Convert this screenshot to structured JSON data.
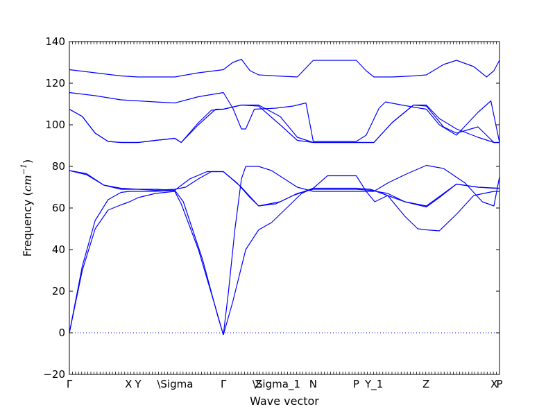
{
  "chart_data": {
    "type": "line",
    "title": "",
    "xlabel": "Wave vector",
    "ylabel": "Frequency",
    "ylabel_unit": "cm",
    "ylabel_unit_exp": "−1",
    "ylim": [
      -20,
      140
    ],
    "yticks": [
      -20,
      0,
      20,
      40,
      60,
      80,
      100,
      120,
      140
    ],
    "xlim": [
      0,
      1
    ],
    "grid": false,
    "legend": "none",
    "line_color": "#0000ff",
    "zero_line_color": "#0000ff",
    "high_symmetry_points": [
      {
        "label": "Γ",
        "pos": 0.0
      },
      {
        "label": "X",
        "pos": 0.1375
      },
      {
        "label": "Y",
        "pos": 0.1596
      },
      {
        "label": "\\Sigma",
        "pos": 0.2458
      },
      {
        "label": "Γ",
        "pos": 0.3583
      },
      {
        "label": "Z",
        "pos": 0.4396
      },
      {
        "label": "\\Sigma_1",
        "pos": 0.4813
      },
      {
        "label": "N",
        "pos": 0.5667
      },
      {
        "label": "P",
        "pos": 0.6667
      },
      {
        "label": "Y_1",
        "pos": 0.7083
      },
      {
        "label": "Z",
        "pos": 0.8292
      },
      {
        "label": "X",
        "pos": 0.9875
      },
      {
        "label": "P",
        "pos": 1.0
      }
    ],
    "series": [
      {
        "values": [
          [
            0,
            0
          ],
          [
            0.03,
            30
          ],
          [
            0.06,
            50
          ],
          [
            0.09,
            59
          ],
          [
            0.12,
            61.5
          ],
          [
            0.14,
            63
          ],
          [
            0.16,
            65
          ],
          [
            0.2,
            67
          ],
          [
            0.245,
            68
          ],
          [
            0.26,
            62
          ],
          [
            0.3,
            40
          ],
          [
            0.34,
            12
          ],
          [
            0.358,
            -1
          ]
        ]
      },
      {
        "values": [
          [
            0,
            0
          ],
          [
            0.03,
            32
          ],
          [
            0.06,
            54
          ],
          [
            0.09,
            64
          ],
          [
            0.12,
            67.5
          ],
          [
            0.14,
            68
          ],
          [
            0.2,
            68
          ],
          [
            0.245,
            68.5
          ],
          [
            0.265,
            63
          ],
          [
            0.31,
            35
          ],
          [
            0.345,
            8
          ],
          [
            0.358,
            -1
          ]
        ]
      },
      {
        "values": [
          [
            0,
            78
          ],
          [
            0.04,
            76
          ],
          [
            0.08,
            71
          ],
          [
            0.12,
            69.5
          ],
          [
            0.16,
            69
          ],
          [
            0.2,
            69
          ],
          [
            0.245,
            68.5
          ],
          [
            0.28,
            74
          ],
          [
            0.32,
            77.5
          ],
          [
            0.358,
            77.5
          ],
          [
            0.4,
            70
          ],
          [
            0.44,
            61
          ],
          [
            0.48,
            62
          ],
          [
            0.52,
            66
          ],
          [
            0.567,
            69.5
          ],
          [
            0.6,
            69.5
          ],
          [
            0.667,
            69.5
          ],
          [
            0.7,
            69
          ],
          [
            0.74,
            66
          ],
          [
            0.78,
            63
          ],
          [
            0.83,
            61
          ],
          [
            0.87,
            67
          ],
          [
            0.9,
            71.5
          ],
          [
            0.95,
            70
          ],
          [
            0.987,
            69.5
          ],
          [
            1.0,
            69.5
          ]
        ]
      },
      {
        "values": [
          [
            0,
            78
          ],
          [
            0.04,
            76.5
          ],
          [
            0.08,
            71
          ],
          [
            0.12,
            69
          ],
          [
            0.16,
            69
          ],
          [
            0.2,
            68.5
          ],
          [
            0.245,
            69
          ],
          [
            0.27,
            70
          ],
          [
            0.3,
            74
          ],
          [
            0.33,
            77.5
          ],
          [
            0.358,
            77.5
          ],
          [
            0.39,
            72
          ],
          [
            0.42,
            65
          ],
          [
            0.44,
            61
          ],
          [
            0.49,
            63
          ],
          [
            0.53,
            67
          ],
          [
            0.567,
            69
          ],
          [
            0.6,
            69
          ],
          [
            0.667,
            69
          ],
          [
            0.7,
            68.5
          ],
          [
            0.74,
            67
          ],
          [
            0.78,
            63
          ],
          [
            0.83,
            60.5
          ],
          [
            0.86,
            65
          ],
          [
            0.9,
            71.5
          ],
          [
            0.95,
            70
          ],
          [
            1.0,
            69.5
          ]
        ]
      },
      {
        "values": [
          [
            0.358,
            -1
          ],
          [
            0.37,
            20
          ],
          [
            0.385,
            50
          ],
          [
            0.4,
            74
          ],
          [
            0.41,
            80
          ],
          [
            0.44,
            80
          ],
          [
            0.47,
            78
          ],
          [
            0.5,
            74
          ],
          [
            0.53,
            70
          ],
          [
            0.567,
            68
          ],
          [
            0.667,
            68
          ],
          [
            0.708,
            68
          ],
          [
            0.74,
            72
          ],
          [
            0.78,
            76
          ],
          [
            0.83,
            80.5
          ],
          [
            0.87,
            79
          ],
          [
            0.92,
            72
          ],
          [
            0.96,
            63
          ],
          [
            0.987,
            61
          ],
          [
            1.0,
            75
          ]
        ]
      },
      {
        "values": [
          [
            0.358,
            -1
          ],
          [
            0.38,
            15
          ],
          [
            0.41,
            40
          ],
          [
            0.44,
            49.5
          ],
          [
            0.47,
            53
          ],
          [
            0.51,
            61
          ],
          [
            0.54,
            67
          ],
          [
            0.567,
            69.5
          ],
          [
            0.6,
            75.5
          ],
          [
            0.667,
            75.5
          ],
          [
            0.69,
            68
          ],
          [
            0.71,
            63
          ],
          [
            0.74,
            66
          ],
          [
            0.78,
            56
          ],
          [
            0.81,
            50
          ],
          [
            0.83,
            49.5
          ],
          [
            0.86,
            49
          ],
          [
            0.9,
            57
          ],
          [
            0.94,
            66
          ],
          [
            0.987,
            68
          ],
          [
            1.0,
            68
          ]
        ]
      },
      {
        "values": [
          [
            0,
            107.5
          ],
          [
            0.03,
            104
          ],
          [
            0.06,
            96
          ],
          [
            0.09,
            92
          ],
          [
            0.12,
            91.5
          ],
          [
            0.16,
            91.5
          ],
          [
            0.2,
            92.5
          ],
          [
            0.245,
            93.5
          ],
          [
            0.26,
            91.5
          ],
          [
            0.3,
            101
          ],
          [
            0.33,
            107
          ],
          [
            0.358,
            107.5
          ],
          [
            0.4,
            109.5
          ],
          [
            0.44,
            109
          ],
          [
            0.49,
            100
          ],
          [
            0.53,
            92.5
          ],
          [
            0.567,
            91.5
          ],
          [
            0.667,
            91.5
          ],
          [
            0.708,
            91.5
          ],
          [
            0.75,
            101
          ],
          [
            0.8,
            109.5
          ],
          [
            0.83,
            109
          ],
          [
            0.87,
            99
          ],
          [
            0.9,
            96
          ],
          [
            0.95,
            99
          ],
          [
            0.987,
            91.5
          ],
          [
            1.0,
            91.5
          ]
        ]
      },
      {
        "values": [
          [
            0,
            107.5
          ],
          [
            0.03,
            104
          ],
          [
            0.06,
            96
          ],
          [
            0.09,
            92
          ],
          [
            0.12,
            91.5
          ],
          [
            0.16,
            91.5
          ],
          [
            0.2,
            92.5
          ],
          [
            0.245,
            93.5
          ],
          [
            0.26,
            91.5
          ],
          [
            0.3,
            100
          ],
          [
            0.34,
            107.5
          ],
          [
            0.358,
            107.5
          ],
          [
            0.4,
            109.5
          ],
          [
            0.44,
            109.5
          ],
          [
            0.49,
            104
          ],
          [
            0.53,
            94
          ],
          [
            0.567,
            91.5
          ],
          [
            0.667,
            91.5
          ],
          [
            0.708,
            91.5
          ],
          [
            0.75,
            101
          ],
          [
            0.8,
            109.5
          ],
          [
            0.83,
            109.5
          ],
          [
            0.86,
            103
          ],
          [
            0.9,
            98
          ],
          [
            0.95,
            94
          ],
          [
            0.987,
            91.5
          ],
          [
            1.0,
            91.5
          ]
        ]
      },
      {
        "values": [
          [
            0,
            115.5
          ],
          [
            0.06,
            114
          ],
          [
            0.12,
            112
          ],
          [
            0.16,
            111.5
          ],
          [
            0.2,
            111
          ],
          [
            0.245,
            110.5
          ],
          [
            0.3,
            113.5
          ],
          [
            0.358,
            115.5
          ],
          [
            0.38,
            108
          ],
          [
            0.4,
            98
          ],
          [
            0.41,
            98
          ],
          [
            0.43,
            107.5
          ],
          [
            0.48,
            108
          ],
          [
            0.52,
            109
          ],
          [
            0.55,
            110.5
          ],
          [
            0.567,
            92
          ],
          [
            0.667,
            92
          ],
          [
            0.69,
            95
          ],
          [
            0.72,
            108
          ],
          [
            0.735,
            111
          ],
          [
            0.76,
            110
          ],
          [
            0.8,
            108.5
          ],
          [
            0.83,
            107.5
          ],
          [
            0.86,
            100
          ],
          [
            0.9,
            95
          ],
          [
            0.95,
            106
          ],
          [
            0.98,
            111.5
          ],
          [
            1.0,
            91.5
          ]
        ]
      },
      {
        "values": [
          [
            0,
            126.5
          ],
          [
            0.06,
            125
          ],
          [
            0.12,
            123.5
          ],
          [
            0.16,
            123
          ],
          [
            0.2,
            123
          ],
          [
            0.245,
            123
          ],
          [
            0.3,
            125
          ],
          [
            0.358,
            126.5
          ],
          [
            0.38,
            130
          ],
          [
            0.4,
            131.5
          ],
          [
            0.42,
            126
          ],
          [
            0.44,
            124
          ],
          [
            0.48,
            123.5
          ],
          [
            0.53,
            123
          ],
          [
            0.567,
            131
          ],
          [
            0.667,
            131
          ],
          [
            0.69,
            126
          ],
          [
            0.708,
            123
          ],
          [
            0.75,
            123
          ],
          [
            0.8,
            123.5
          ],
          [
            0.83,
            124
          ],
          [
            0.87,
            129
          ],
          [
            0.9,
            131
          ],
          [
            0.94,
            128
          ],
          [
            0.97,
            123
          ],
          [
            0.987,
            126
          ],
          [
            1.0,
            131
          ]
        ]
      }
    ]
  }
}
